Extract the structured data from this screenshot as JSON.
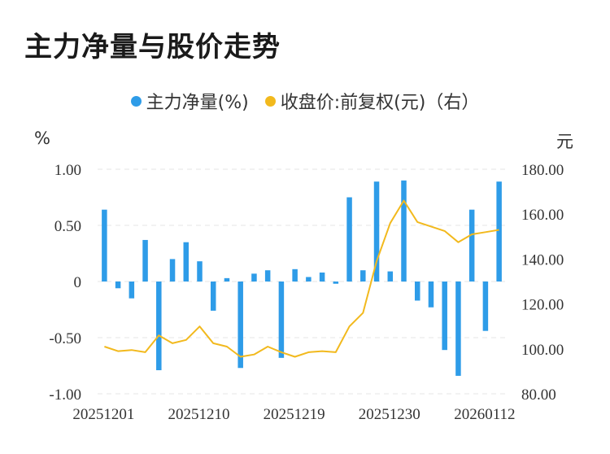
{
  "chart_data": {
    "title": "主力净量与股价走势",
    "legend": [
      {
        "label": "主力净量(%)",
        "color": "#2e9ce8",
        "type": "bar"
      },
      {
        "label": "收盘价:前复权(元)（右）",
        "color": "#f2b91d",
        "type": "line"
      }
    ],
    "left_unit": "%",
    "right_unit": "元",
    "x_tick_labels": [
      "20251201",
      "20251210",
      "20251219",
      "20251230",
      "20260112"
    ],
    "x_tick_indices": [
      0,
      7,
      14,
      21,
      28
    ],
    "left_axis": {
      "min": -1.0,
      "max": 1.0,
      "ticks": [
        1.0,
        0.5,
        0,
        -0.5,
        -1.0
      ],
      "tick_labels": [
        "1.00",
        "0.50",
        "0",
        "-0.50",
        "-1.00"
      ]
    },
    "right_axis": {
      "min": 80,
      "max": 180,
      "ticks": [
        180,
        160,
        140,
        120,
        100,
        80
      ],
      "tick_labels": [
        "180.00",
        "160.00",
        "140.00",
        "120.00",
        "100.00",
        "80.00"
      ]
    },
    "bar_values": [
      0.64,
      -0.06,
      -0.15,
      0.37,
      -0.79,
      0.2,
      0.35,
      0.18,
      -0.26,
      0.03,
      -0.77,
      0.07,
      0.1,
      -0.68,
      0.11,
      0.04,
      0.08,
      -0.02,
      0.75,
      0.1,
      0.89,
      0.09,
      0.9,
      -0.17,
      -0.23,
      -0.61,
      -0.84,
      0.64,
      -0.44,
      0.89
    ],
    "line_values": [
      101,
      99,
      99.5,
      98.5,
      106,
      102.5,
      104,
      110,
      102.5,
      101,
      96.5,
      97.5,
      101,
      98.5,
      96.5,
      98.5,
      99,
      98.5,
      110,
      116,
      139,
      156,
      166,
      156.5,
      154.5,
      152.5,
      147.5,
      151,
      152,
      153
    ],
    "grid": true
  }
}
